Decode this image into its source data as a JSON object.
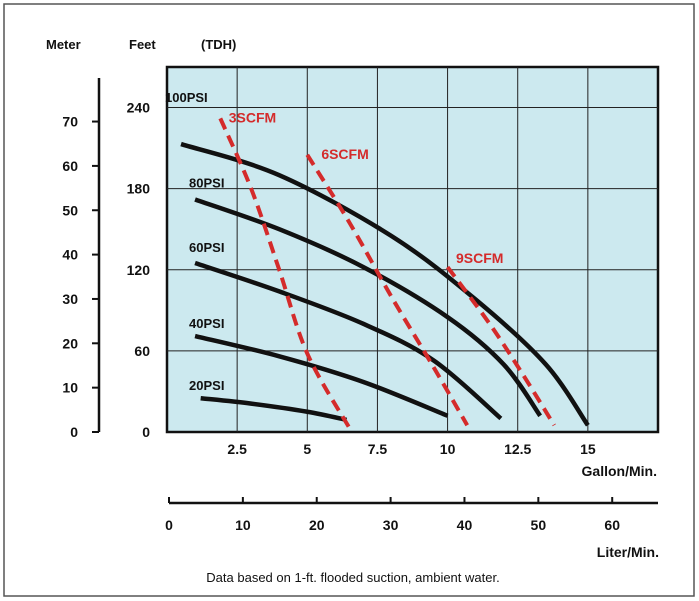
{
  "chart_data": {
    "type": "line",
    "axis_headers": {
      "meter": "Meter",
      "feet": "Feet",
      "tdh": "(TDH)"
    },
    "x_primary": {
      "label": "Gallon/Min.",
      "ticks": [
        "2.5",
        "5",
        "7.5",
        "10",
        "12.5",
        "15"
      ],
      "tick_values": [
        2.5,
        5,
        7.5,
        10,
        12.5,
        15
      ],
      "range": [
        0,
        17.5
      ]
    },
    "x_secondary": {
      "label": "Liter/Min.",
      "ticks": [
        "0",
        "10",
        "20",
        "30",
        "40",
        "50",
        "60"
      ],
      "tick_values": [
        0,
        10,
        20,
        30,
        40,
        50,
        60
      ],
      "range": [
        0,
        66.2
      ]
    },
    "y_feet": {
      "ticks": [
        "0",
        "60",
        "120",
        "180",
        "240"
      ],
      "tick_values": [
        0,
        60,
        120,
        180,
        240
      ],
      "range": [
        0,
        270
      ]
    },
    "y_meter": {
      "ticks": [
        "0",
        "10",
        "20",
        "30",
        "40",
        "50",
        "60",
        "70"
      ],
      "tick_values": [
        0,
        10,
        20,
        30,
        40,
        50,
        60,
        70
      ],
      "range": [
        0,
        82.3
      ]
    },
    "grid": true,
    "background": "#cce9ef",
    "series": [
      {
        "name": "100PSI",
        "color": "#111111",
        "dashed": false,
        "points": [
          [
            0.5,
            244
          ],
          [
            0.0,
            0
          ]
        ],
        "curve": [
          [
            0.5,
            213
          ],
          [
            4,
            190
          ],
          [
            8,
            145
          ],
          [
            11,
            98
          ],
          [
            13.5,
            50
          ],
          [
            15,
            5
          ]
        ]
      },
      {
        "name": "80PSI",
        "color": "#111111",
        "dashed": false,
        "points": [
          [
            0.5,
            178
          ]
        ],
        "curve": [
          [
            1,
            172
          ],
          [
            4,
            150
          ],
          [
            7,
            122
          ],
          [
            10,
            85
          ],
          [
            12,
            50
          ],
          [
            13.3,
            12
          ]
        ]
      },
      {
        "name": "60PSI",
        "color": "#111111",
        "dashed": false,
        "points": [
          [
            0.5,
            130
          ]
        ],
        "curve": [
          [
            1,
            125
          ],
          [
            4,
            104
          ],
          [
            7,
            80
          ],
          [
            9.5,
            53
          ],
          [
            11.9,
            10
          ]
        ]
      },
      {
        "name": "40PSI",
        "color": "#111111",
        "dashed": false,
        "points": [
          [
            0.5,
            75
          ]
        ],
        "curve": [
          [
            1,
            71
          ],
          [
            4,
            56
          ],
          [
            7,
            37
          ],
          [
            10,
            12
          ]
        ]
      },
      {
        "name": "20PSI",
        "color": "#111111",
        "dashed": false,
        "points": [
          [
            0.5,
            28
          ]
        ],
        "curve": [
          [
            1.2,
            25
          ],
          [
            3,
            21
          ],
          [
            5,
            15
          ],
          [
            6.4,
            9
          ]
        ]
      },
      {
        "name": "3SCFM",
        "color": "#d42b2b",
        "dashed": true,
        "points": [
          [
            1.9,
            232
          ]
        ],
        "curve": [
          [
            1.9,
            232
          ],
          [
            3,
            180
          ],
          [
            4,
            120
          ],
          [
            5,
            58
          ],
          [
            6.5,
            3
          ]
        ]
      },
      {
        "name": "6SCFM",
        "color": "#d42b2b",
        "dashed": true,
        "points": [
          [
            5.3,
            205
          ]
        ],
        "curve": [
          [
            5,
            205
          ],
          [
            6.5,
            155
          ],
          [
            8,
            100
          ],
          [
            9.5,
            48
          ],
          [
            10.7,
            5
          ]
        ]
      },
      {
        "name": "9SCFM",
        "color": "#d42b2b",
        "dashed": true,
        "points": [
          [
            10.1,
            125
          ]
        ],
        "curve": [
          [
            10,
            122
          ],
          [
            11.5,
            80
          ],
          [
            12.7,
            42
          ],
          [
            13.8,
            5
          ]
        ]
      }
    ],
    "series_label_positions": [
      {
        "name": "100PSI",
        "x": 0.0,
        "y": 244
      },
      {
        "name": "80PSI",
        "x": 0.5,
        "y": 184
      },
      {
        "name": "60PSI",
        "x": 0.5,
        "y": 136
      },
      {
        "name": "40PSI",
        "x": 0.5,
        "y": 80
      },
      {
        "name": "20PSI",
        "x": 0.5,
        "y": 34
      },
      {
        "name": "3SCFM",
        "x": 2.2,
        "y": 229
      },
      {
        "name": "6SCFM",
        "x": 5.5,
        "y": 202
      },
      {
        "name": "9SCFM",
        "x": 10.3,
        "y": 125
      }
    ],
    "note": "Data based on 1-ft. flooded suction, ambient water."
  }
}
